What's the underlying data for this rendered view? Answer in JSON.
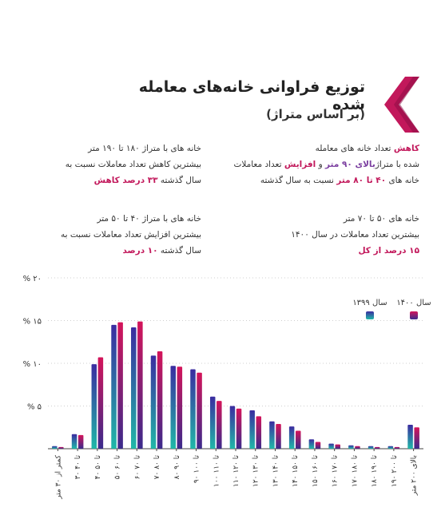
{
  "header": {
    "title": "توزیع فراوانی خانه‌های معامله شده",
    "subtitle": "(بر اساس متراژ)"
  },
  "notes": {
    "top_right": {
      "l1_a": "کاهش",
      "l1_b": " تعداد خانه های معامله",
      "l2_a": "شده با متراژ",
      "l2_b": "بالای ۹۰ متر",
      "l2_c": " و ",
      "l2_d": "افزایش",
      "l2_e": " تعداد معاملات",
      "l3_a": "خانه های ",
      "l3_b": "۴۰ تا ۸۰ متر",
      "l3_c": " نسبت به سال گذشته"
    },
    "top_left": {
      "l1": "خانه های با متراژ ۱۸۰ تا ۱۹۰ متر",
      "l2": "بیشترین کاهش تعداد معاملات نسبت به",
      "l3_a": "سال گذشته ",
      "l3_b": "۳۳ درصد کاهش"
    },
    "mid_right": {
      "l1": "خانه های ۵۰ تا ۷۰ متر",
      "l2": "بیشترین تعداد معاملات در سال ۱۴۰۰",
      "l3": "۱۵ درصد از کل"
    },
    "mid_left": {
      "l1": "خانه های با متراژ ۴۰ تا ۵۰ متر",
      "l2": "بیشترین افزایش تعداد معاملات نسبت به",
      "l3_a": "سال گذشته ",
      "l3_b": "۱۰ درصد"
    }
  },
  "colors": {
    "accent": "#c2185b",
    "y1399_top": "#3b2ca0",
    "y1399_bottom": "#20b8a8",
    "y1400_top": "#d4145a",
    "y1400_bottom": "#3a2a8c"
  },
  "chart_data": {
    "type": "bar",
    "categories": [
      "کمتر از ۳۰ متر",
      "۳۰ تا ۴۰",
      "۴۰ تا ۵۰",
      "۵۰ تا ۶۰",
      "۶۰ تا ۷۰",
      "۷۰ تا ۸۰",
      "۸۰ تا ۹۰",
      "۹۰ تا ۱۰۰",
      "۱۰۰ تا ۱۱۰",
      "۱۱۰ تا ۱۲۰",
      "۱۲۰ تا ۱۳۰",
      "۱۳۰ تا ۱۴۰",
      "۱۴۰ تا ۱۵۰",
      "۱۵۰ تا ۱۶۰",
      "۱۶۰ تا ۱۷۰",
      "۱۷۰ تا ۱۸۰",
      "۱۸۰ تا ۱۹۰",
      "۱۹۰ تا ۲۰۰",
      "بالای ۲۰۰ متر"
    ],
    "series": [
      {
        "name": "سال ۱۳۹۹",
        "values": [
          0.3,
          1.7,
          9.9,
          14.5,
          14.2,
          10.9,
          9.7,
          9.3,
          6.1,
          5.0,
          4.5,
          3.2,
          2.6,
          1.1,
          0.6,
          0.4,
          0.3,
          0.3,
          2.8
        ]
      },
      {
        "name": "سال ۱۴۰۰",
        "values": [
          0.2,
          1.6,
          10.7,
          14.8,
          14.9,
          11.4,
          9.6,
          8.9,
          5.6,
          4.7,
          3.8,
          2.9,
          2.1,
          0.8,
          0.5,
          0.3,
          0.2,
          0.2,
          2.5
        ]
      }
    ],
    "yticks": [
      "۰",
      "% ۵",
      "% ۱۰",
      "% ۱۵",
      "% ۲۰"
    ],
    "ylim": [
      0,
      20
    ],
    "legend": "top-right",
    "grid": false
  }
}
